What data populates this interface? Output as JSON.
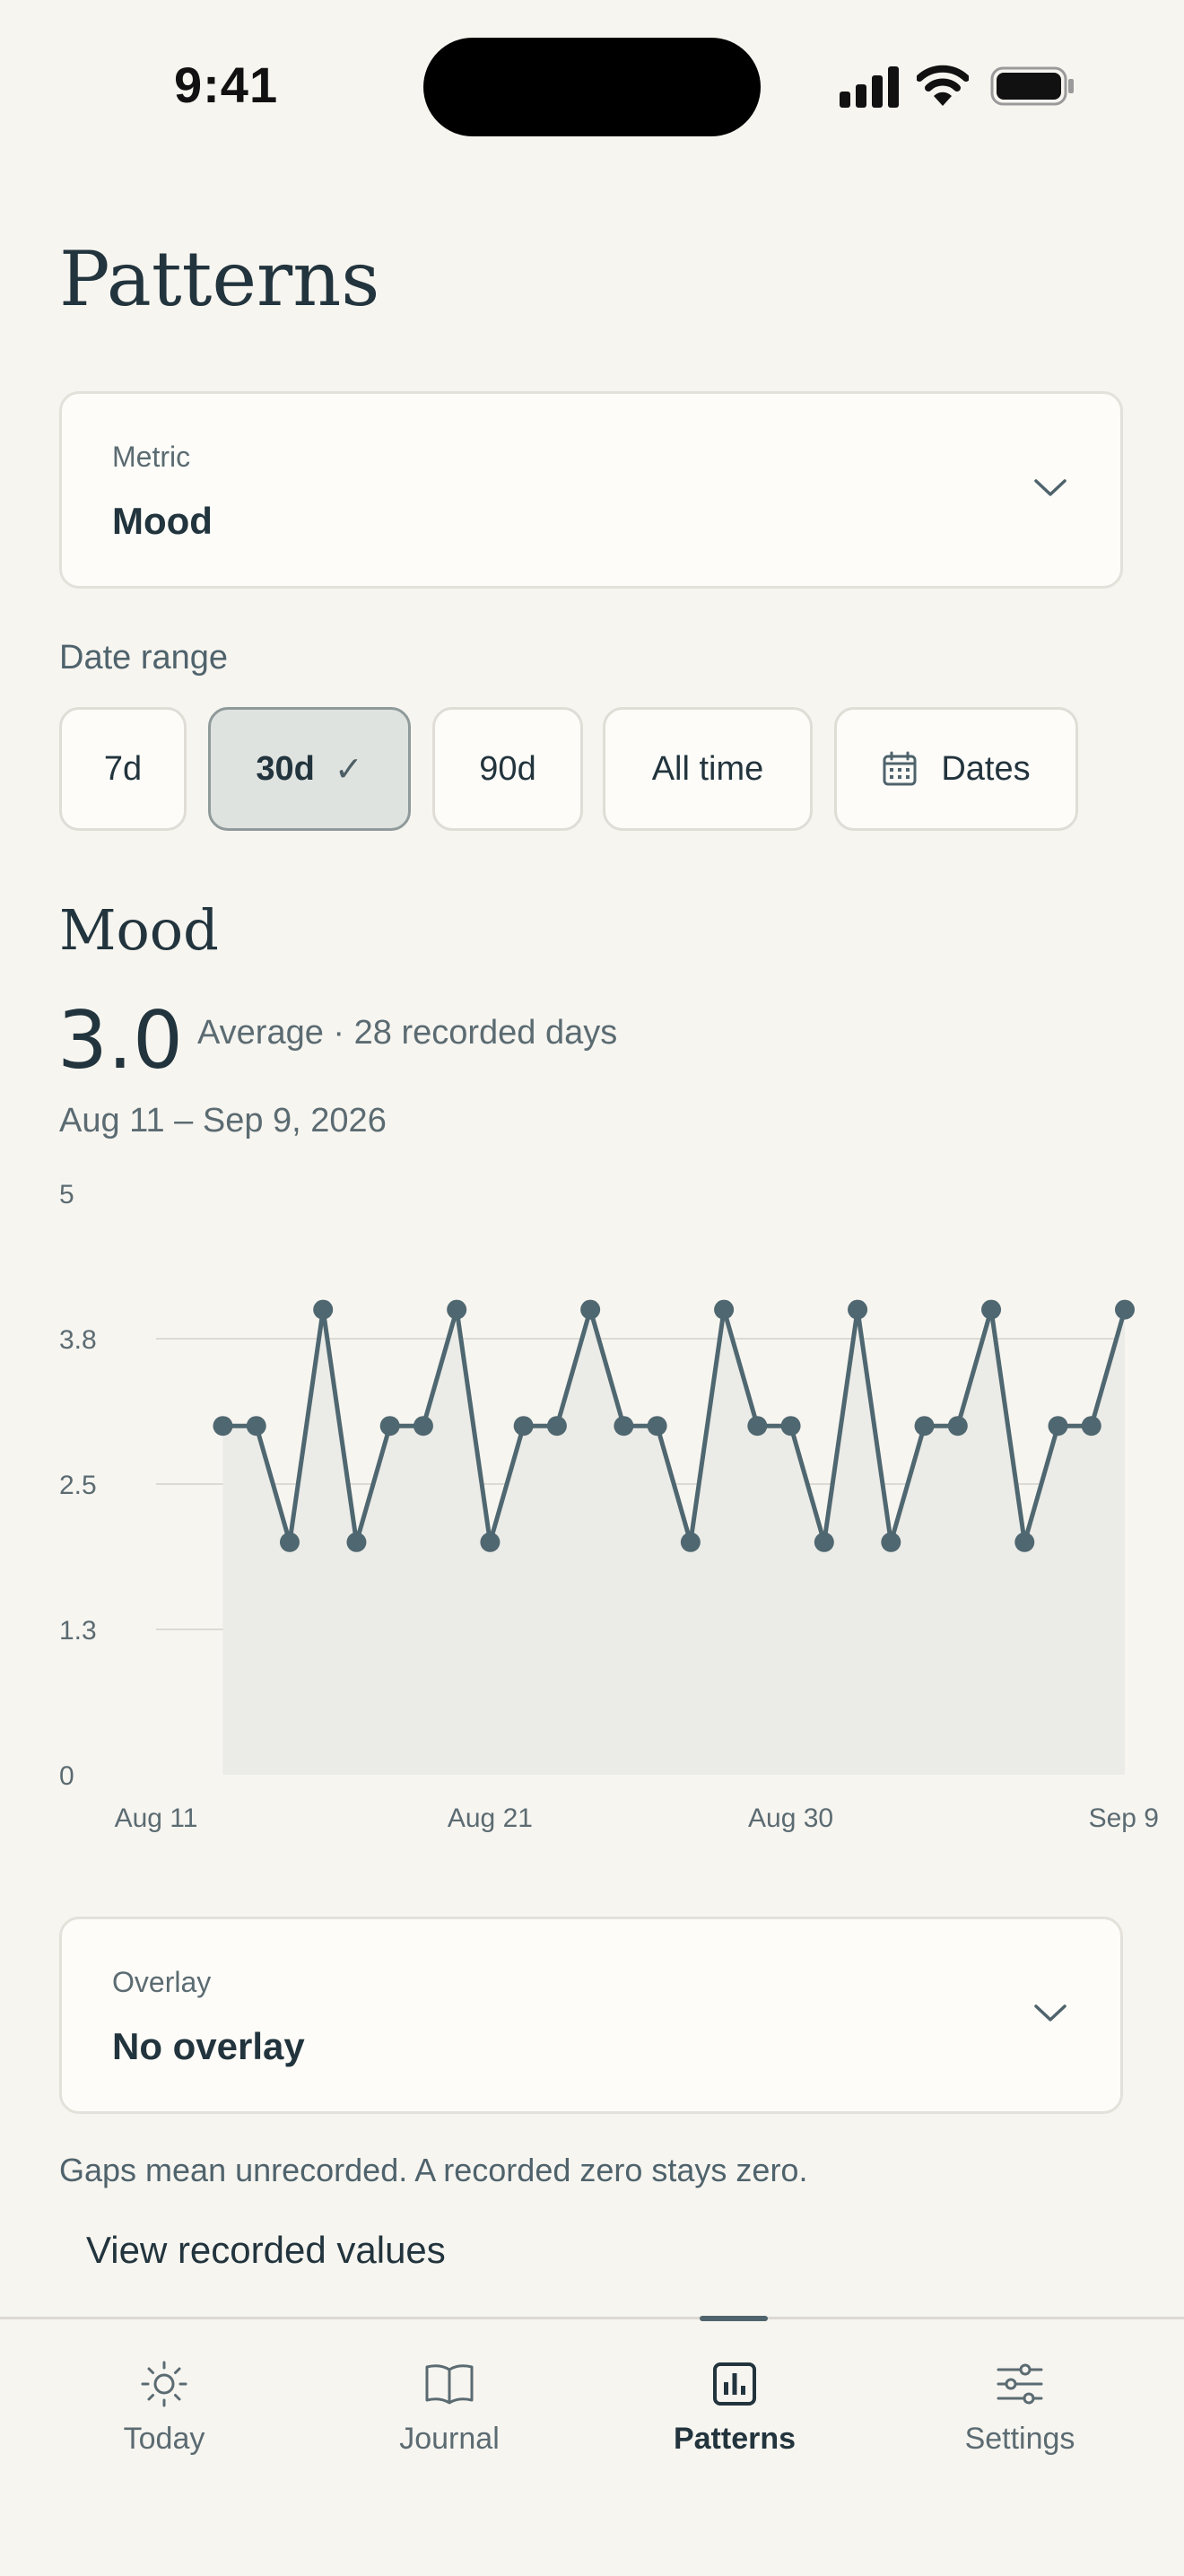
{
  "status": {
    "time": "9:41"
  },
  "page": {
    "title": "Patterns"
  },
  "metric_select": {
    "caption": "Metric",
    "value": "Mood"
  },
  "date_range": {
    "label": "Date range",
    "chips": [
      {
        "label": "7d",
        "active": false
      },
      {
        "label": "30d",
        "active": true,
        "check": "✓"
      },
      {
        "label": "90d",
        "active": false
      },
      {
        "label": "All time",
        "active": false
      },
      {
        "label": "Dates",
        "active": false,
        "icon": "calendar-icon"
      }
    ]
  },
  "summary": {
    "title": "Mood",
    "value": "3.0",
    "caption": "Average · 28 recorded days",
    "range": "Aug 11 – Sep 9, 2026"
  },
  "chart_data": {
    "type": "area",
    "ylim": [
      0,
      5
    ],
    "y_ticks": [
      "0",
      "1.3",
      "2.5",
      "3.8",
      "5"
    ],
    "y_tick_values": [
      0,
      1.25,
      2.5,
      3.75,
      5
    ],
    "x_tick_labels": [
      "Aug 11",
      "Aug 21",
      "Aug 30",
      "Sep 9"
    ],
    "x_tick_days": [
      0,
      10,
      19,
      29
    ],
    "x_days": [
      2,
      3,
      4,
      5,
      6,
      7,
      8,
      9,
      10,
      11,
      12,
      13,
      14,
      15,
      16,
      17,
      18,
      19,
      20,
      21,
      22,
      23,
      24,
      25,
      26,
      27,
      28,
      29
    ],
    "values": [
      3,
      3,
      2,
      4,
      2,
      3,
      3,
      4,
      2,
      3,
      3,
      4,
      3,
      3,
      2,
      4,
      3,
      3,
      2,
      4,
      2,
      3,
      3,
      4,
      2,
      3,
      3,
      4
    ],
    "grid": true,
    "colors": {
      "line": "#4f6770",
      "fill": "#ebebe7",
      "grid": "#dcdad4",
      "label": "#5b6b72"
    }
  },
  "overlay_select": {
    "caption": "Overlay",
    "value": "No overlay"
  },
  "note": "Gaps mean unrecorded. A recorded zero stays zero.",
  "view_link": "View recorded values",
  "tabs": [
    {
      "label": "Today",
      "icon": "sun-icon",
      "active": false
    },
    {
      "label": "Journal",
      "icon": "book-icon",
      "active": false
    },
    {
      "label": "Patterns",
      "icon": "bar-chart-icon",
      "active": true
    },
    {
      "label": "Settings",
      "icon": "sliders-icon",
      "active": false
    }
  ]
}
